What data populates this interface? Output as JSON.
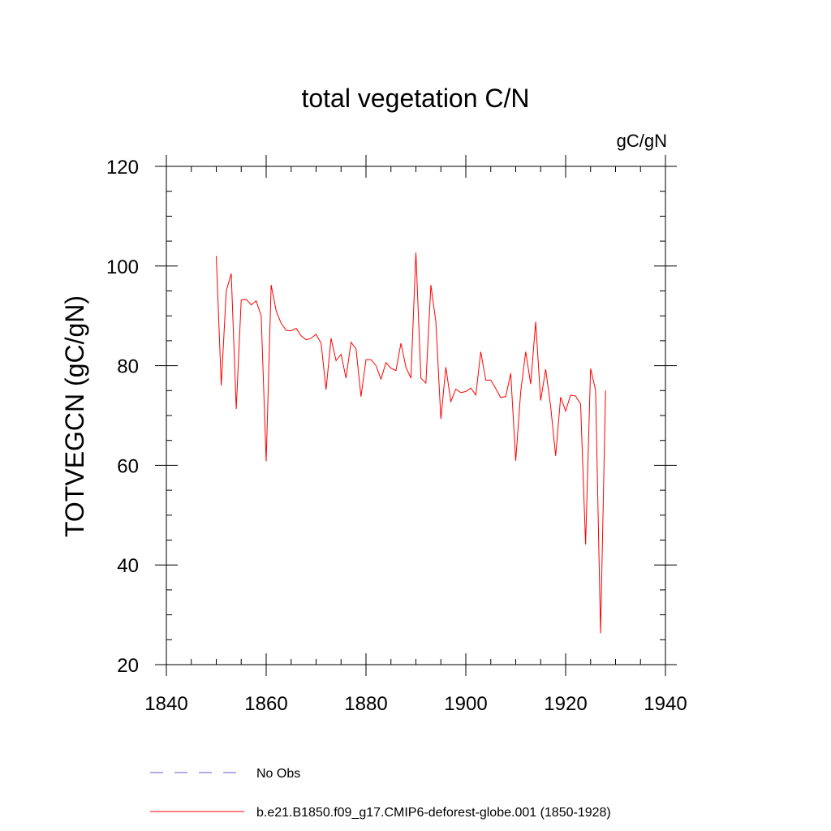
{
  "chart_data": {
    "type": "line",
    "title": "total vegetation C/N",
    "units_label": "gC/gN",
    "xlabel": "",
    "ylabel": "TOTVEGCN  (gC/gN)",
    "xlim": [
      1840,
      1940
    ],
    "ylim": [
      20,
      120
    ],
    "x_ticks": [
      1840,
      1860,
      1880,
      1900,
      1920,
      1940
    ],
    "y_ticks": [
      20,
      40,
      60,
      80,
      100,
      120
    ],
    "x_tick_labels": [
      "1840",
      "1860",
      "1880",
      "1900",
      "1920",
      "1940"
    ],
    "y_tick_labels": [
      "20",
      "40",
      "60",
      "80",
      "100",
      "120"
    ],
    "grid": false,
    "legend_position": "bottom",
    "series": [
      {
        "name": "b.e21.B1850.f09_g17.CMIP6-deforest-globe.001 (1850-1928)",
        "color": "#ff0000",
        "style": "solid",
        "x": [
          1850,
          1851,
          1852,
          1853,
          1854,
          1855,
          1856,
          1857,
          1858,
          1859,
          1860,
          1861,
          1862,
          1863,
          1864,
          1865,
          1866,
          1867,
          1868,
          1869,
          1870,
          1871,
          1872,
          1873,
          1874,
          1875,
          1876,
          1877,
          1878,
          1879,
          1880,
          1881,
          1882,
          1883,
          1884,
          1885,
          1886,
          1887,
          1888,
          1889,
          1890,
          1891,
          1892,
          1893,
          1894,
          1895,
          1896,
          1897,
          1898,
          1899,
          1900,
          1901,
          1902,
          1903,
          1904,
          1905,
          1906,
          1907,
          1908,
          1909,
          1910,
          1911,
          1912,
          1913,
          1914,
          1915,
          1916,
          1917,
          1918,
          1919,
          1920,
          1921,
          1922,
          1923,
          1924,
          1925,
          1926,
          1927,
          1928
        ],
        "values": [
          102,
          76,
          95,
          98.5,
          71.3,
          93.2,
          93.3,
          92.2,
          93,
          90,
          60.8,
          96.2,
          91,
          88.5,
          87.1,
          87,
          87.5,
          86,
          85.2,
          85.5,
          86.3,
          84.5,
          75.2,
          85.5,
          81,
          82.3,
          77.5,
          84.7,
          83.4,
          73.8,
          81.2,
          81.2,
          80,
          77.3,
          80.6,
          79.5,
          79,
          84.5,
          79.7,
          77.5,
          102.7,
          77.5,
          76.5,
          96.2,
          88.8,
          69.3,
          79.7,
          72.8,
          75.3,
          74.6,
          74.8,
          75.5,
          74.1,
          82.8,
          77.1,
          77.1,
          75.4,
          73.6,
          73.8,
          78.5,
          60.9,
          74.8,
          82.8,
          76.3,
          88.8,
          73,
          79.3,
          71.8,
          61.9,
          73.7,
          70.9,
          74.1,
          73.9,
          72.3,
          44.1,
          79.4,
          75.1,
          26.3,
          75
        ]
      }
    ],
    "legend": [
      {
        "label": "No Obs",
        "color": "#6a5acd",
        "style": "dashed"
      },
      {
        "label": "b.e21.B1850.f09_g17.CMIP6-deforest-globe.001 (1850-1928)",
        "color": "#ff0000",
        "style": "solid"
      }
    ]
  }
}
